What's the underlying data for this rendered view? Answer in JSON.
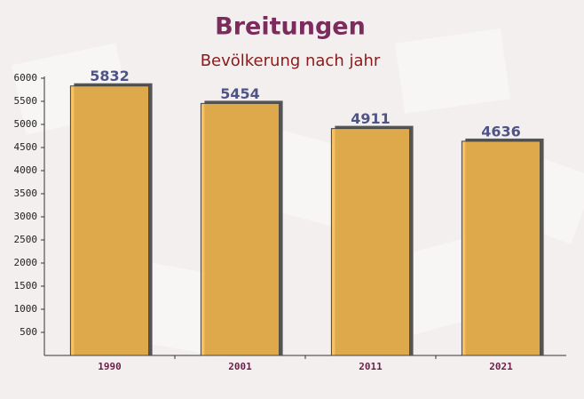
{
  "chart_data": {
    "type": "bar",
    "title": "Breitungen",
    "subtitle": "Bevölkerung nach jahr",
    "categories": [
      "1990",
      "2001",
      "2011",
      "2021"
    ],
    "values": [
      5832,
      5454,
      4911,
      4636
    ],
    "color": "#f7b84a",
    "ylim": [
      0,
      6000
    ],
    "yticks": [
      500,
      1000,
      1500,
      2000,
      2500,
      3000,
      3500,
      4000,
      4500,
      5000,
      5500,
      6000
    ],
    "grid": false
  }
}
